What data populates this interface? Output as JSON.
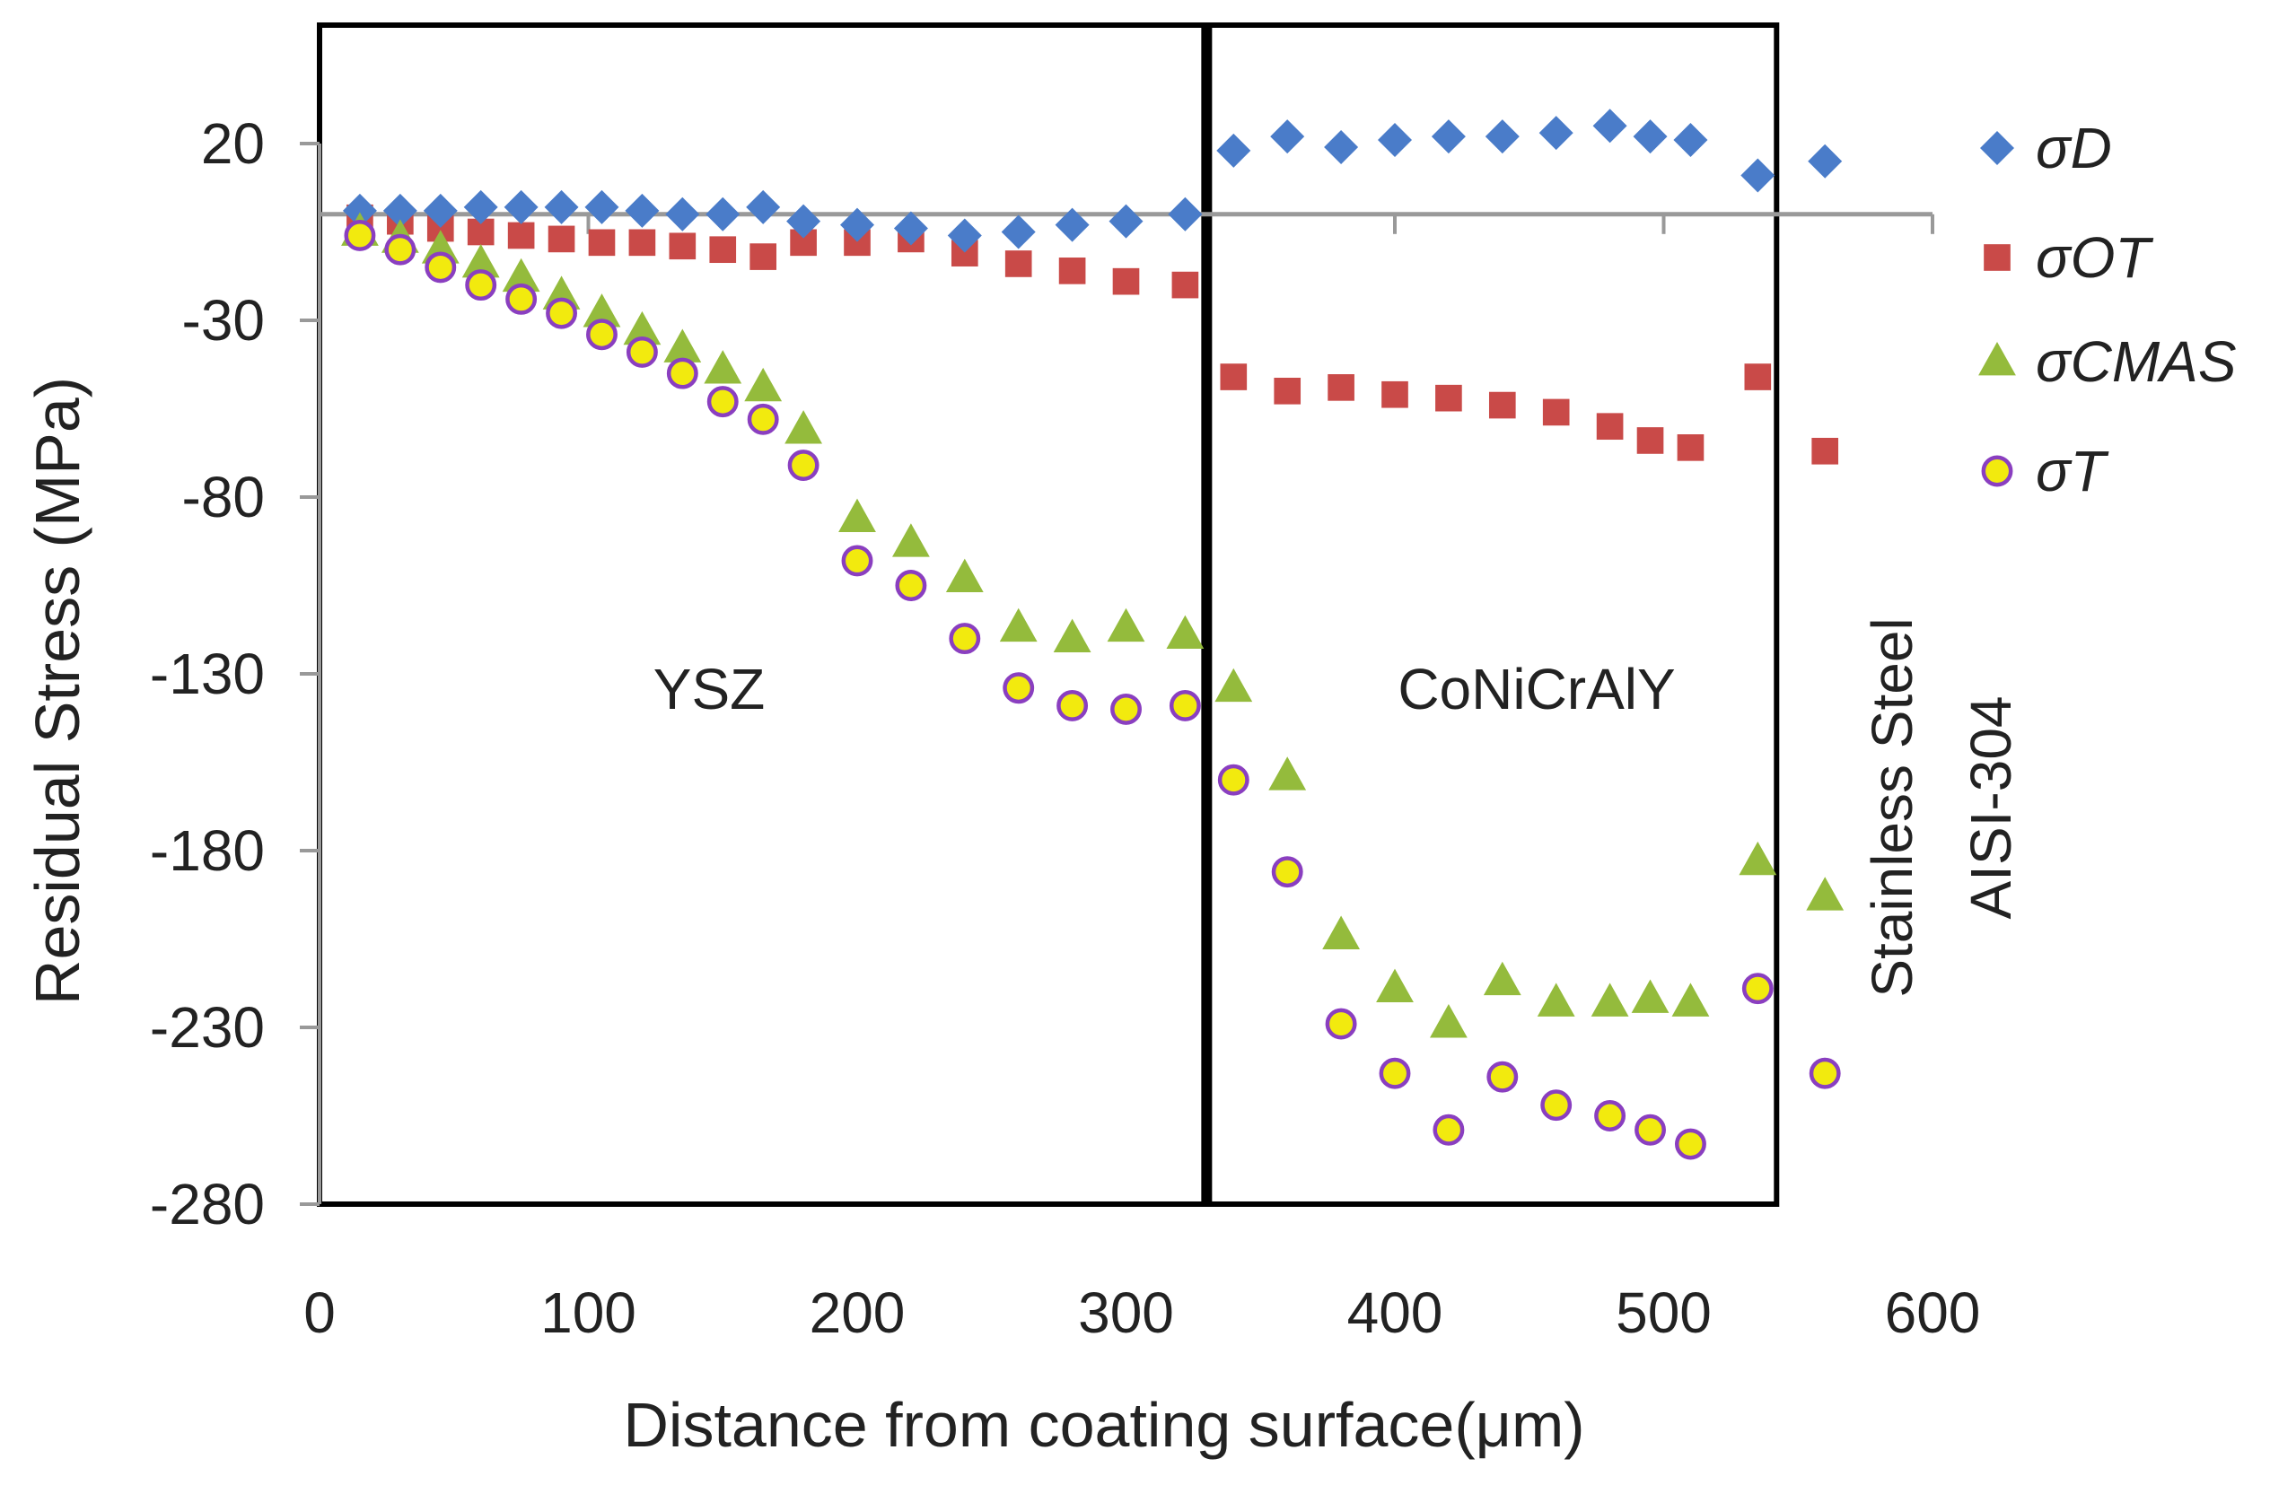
{
  "chart_data": {
    "type": "scatter",
    "title": "",
    "xlabel": "Distance from coating surface(μm)",
    "ylabel": "Residual Stress (MPa)",
    "xlim": [
      0,
      600
    ],
    "ylim": [
      -280,
      40
    ],
    "x_ticks": [
      0,
      100,
      200,
      300,
      400,
      500,
      600
    ],
    "y_ticks": [
      20,
      -30,
      -80,
      -130,
      -180,
      -230,
      -280
    ],
    "grid": false,
    "legend_position": "right",
    "layer_boundaries": [
      330,
      542
    ],
    "region_labels": {
      "ysz": "YSZ",
      "bond": "CoNiCrAlY",
      "substrate_line1": "Stainless  Steel",
      "substrate_line2": "AISI-304"
    },
    "series": [
      {
        "name": "σD",
        "marker": "diamond",
        "color": "#4a7cc9",
        "points": [
          [
            15,
            1
          ],
          [
            30,
            1
          ],
          [
            45,
            1
          ],
          [
            60,
            2
          ],
          [
            75,
            2
          ],
          [
            90,
            2
          ],
          [
            105,
            2
          ],
          [
            120,
            1
          ],
          [
            135,
            0
          ],
          [
            150,
            0
          ],
          [
            165,
            2
          ],
          [
            180,
            -2
          ],
          [
            200,
            -3
          ],
          [
            220,
            -4
          ],
          [
            240,
            -6
          ],
          [
            260,
            -5
          ],
          [
            280,
            -3
          ],
          [
            300,
            -2
          ],
          [
            322,
            0
          ],
          [
            340,
            18
          ],
          [
            360,
            22
          ],
          [
            380,
            19
          ],
          [
            400,
            21
          ],
          [
            420,
            22
          ],
          [
            440,
            22
          ],
          [
            460,
            23
          ],
          [
            480,
            25
          ],
          [
            495,
            22
          ],
          [
            510,
            21
          ],
          [
            535,
            11
          ],
          [
            560,
            15
          ]
        ]
      },
      {
        "name": "σOT",
        "marker": "square",
        "color": "#c94a48",
        "points": [
          [
            15,
            -1
          ],
          [
            30,
            -2
          ],
          [
            45,
            -4
          ],
          [
            60,
            -5
          ],
          [
            75,
            -6
          ],
          [
            90,
            -7
          ],
          [
            105,
            -8
          ],
          [
            120,
            -8
          ],
          [
            135,
            -9
          ],
          [
            150,
            -10
          ],
          [
            165,
            -12
          ],
          [
            180,
            -8
          ],
          [
            200,
            -8
          ],
          [
            220,
            -7
          ],
          [
            240,
            -11
          ],
          [
            260,
            -14
          ],
          [
            280,
            -16
          ],
          [
            300,
            -19
          ],
          [
            322,
            -20
          ],
          [
            340,
            -46
          ],
          [
            360,
            -50
          ],
          [
            380,
            -49
          ],
          [
            400,
            -51
          ],
          [
            420,
            -52
          ],
          [
            440,
            -54
          ],
          [
            460,
            -56
          ],
          [
            480,
            -60
          ],
          [
            495,
            -64
          ],
          [
            510,
            -66
          ],
          [
            535,
            -46
          ],
          [
            560,
            -67
          ]
        ]
      },
      {
        "name": "σCMAS",
        "marker": "triangle",
        "color": "#94bb3c",
        "points": [
          [
            15,
            -5
          ],
          [
            30,
            -7
          ],
          [
            45,
            -10
          ],
          [
            60,
            -14
          ],
          [
            75,
            -18
          ],
          [
            90,
            -23
          ],
          [
            105,
            -28
          ],
          [
            120,
            -33
          ],
          [
            135,
            -38
          ],
          [
            150,
            -44
          ],
          [
            165,
            -49
          ],
          [
            180,
            -61
          ],
          [
            200,
            -86
          ],
          [
            220,
            -93
          ],
          [
            240,
            -103
          ],
          [
            260,
            -117
          ],
          [
            280,
            -120
          ],
          [
            300,
            -117
          ],
          [
            322,
            -119
          ],
          [
            340,
            -134
          ],
          [
            360,
            -159
          ],
          [
            380,
            -204
          ],
          [
            400,
            -219
          ],
          [
            420,
            -229
          ],
          [
            440,
            -217
          ],
          [
            460,
            -223
          ],
          [
            480,
            -223
          ],
          [
            495,
            -222
          ],
          [
            510,
            -223
          ],
          [
            535,
            -183
          ],
          [
            560,
            -193
          ]
        ]
      },
      {
        "name": "σT",
        "marker": "circle",
        "color": "#f2ea0e",
        "stroke": "#8a3fc0",
        "points": [
          [
            15,
            -6
          ],
          [
            30,
            -10
          ],
          [
            45,
            -15
          ],
          [
            60,
            -20
          ],
          [
            75,
            -24
          ],
          [
            90,
            -28
          ],
          [
            105,
            -34
          ],
          [
            120,
            -39
          ],
          [
            135,
            -45
          ],
          [
            150,
            -53
          ],
          [
            165,
            -58
          ],
          [
            180,
            -71
          ],
          [
            200,
            -98
          ],
          [
            220,
            -105
          ],
          [
            240,
            -120
          ],
          [
            260,
            -134
          ],
          [
            280,
            -139
          ],
          [
            300,
            -140
          ],
          [
            322,
            -139
          ],
          [
            340,
            -160
          ],
          [
            360,
            -186
          ],
          [
            380,
            -229
          ],
          [
            400,
            -243
          ],
          [
            420,
            -259
          ],
          [
            440,
            -244
          ],
          [
            460,
            -252
          ],
          [
            480,
            -255
          ],
          [
            495,
            -259
          ],
          [
            510,
            -263
          ],
          [
            535,
            -219
          ],
          [
            560,
            -243
          ]
        ]
      }
    ]
  }
}
